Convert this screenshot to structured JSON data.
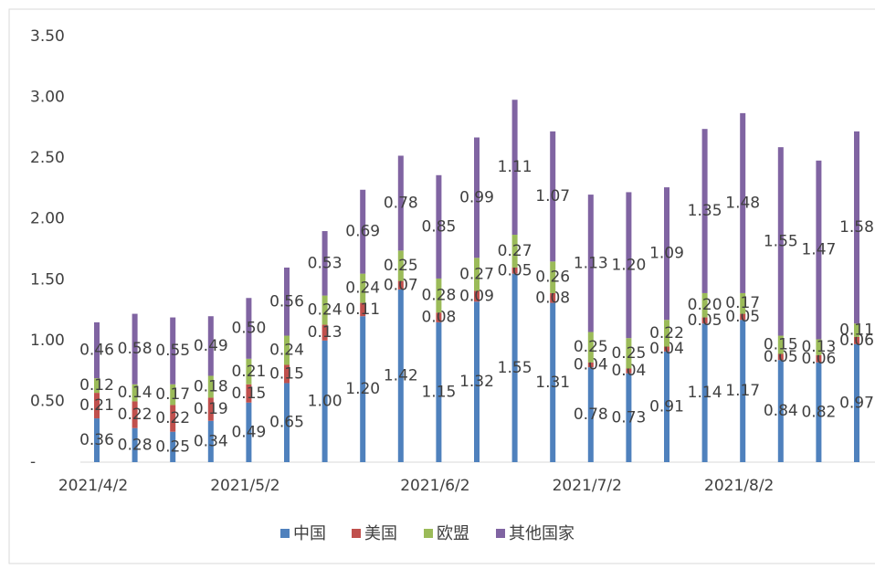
{
  "chart_data": {
    "type": "stacked_bar",
    "categories": [
      "2021/4/2",
      null,
      null,
      null,
      "2021/5/2",
      null,
      null,
      null,
      null,
      "2021/6/2",
      null,
      null,
      null,
      "2021/7/2",
      null,
      null,
      null,
      "2021/8/2",
      null,
      null,
      null
    ],
    "series": [
      {
        "name": "中国",
        "color": "#4f81bd",
        "values": [
          0.36,
          0.28,
          0.25,
          0.34,
          0.49,
          0.65,
          1.0,
          1.2,
          1.42,
          1.15,
          1.32,
          1.55,
          1.31,
          0.78,
          0.73,
          0.91,
          1.14,
          1.17,
          0.84,
          0.82,
          0.97
        ],
        "value_labels": [
          "0.36",
          "0.28",
          "0.25",
          "0.34",
          "0.49",
          "0.65",
          "1.00",
          "1.20",
          "1.42",
          "1.15",
          "1.32",
          "1.55",
          "1.31",
          "0.78",
          "0.73",
          "0.91",
          "1.14",
          "1.17",
          "0.84",
          "0.82",
          "0.97"
        ]
      },
      {
        "name": "美国",
        "color": "#c0504d",
        "values": [
          0.21,
          0.22,
          0.22,
          0.19,
          0.15,
          0.15,
          0.13,
          0.11,
          0.07,
          0.08,
          0.09,
          0.05,
          0.08,
          0.04,
          0.04,
          0.04,
          0.05,
          0.05,
          0.05,
          0.06,
          0.06
        ],
        "value_labels": [
          "0.21",
          "0.22",
          "0.22",
          "0.19",
          "0.15",
          "0.15",
          "0.13",
          "0.11",
          "0.07",
          "0.08",
          "0.09",
          "0.05",
          "0.08",
          "0.04",
          "0.04",
          "0.04",
          "0.05",
          "0.05",
          "0.05",
          "0.06",
          "0.06"
        ]
      },
      {
        "name": "欧盟",
        "color": "#9bbb59",
        "values": [
          0.12,
          0.14,
          0.17,
          0.18,
          0.21,
          0.24,
          0.24,
          0.24,
          0.25,
          0.28,
          0.27,
          0.27,
          0.26,
          0.25,
          0.25,
          0.22,
          0.2,
          0.17,
          0.15,
          0.13,
          0.11
        ],
        "value_labels": [
          "0.12",
          "0.14",
          "0.17",
          "0.18",
          "0.21",
          "0.24",
          "0.24",
          "0.24",
          "0.25",
          "0.28",
          "0.27",
          "0.27",
          "0.26",
          "0.25",
          "0.25",
          "0.22",
          "0.20",
          "0.17",
          "0.15",
          "0.13",
          "0.11"
        ]
      },
      {
        "name": "其他国家",
        "color": "#8064a2",
        "values": [
          0.46,
          0.58,
          0.55,
          0.49,
          0.5,
          0.56,
          0.53,
          0.69,
          0.78,
          0.85,
          0.99,
          1.11,
          1.07,
          1.13,
          1.2,
          1.09,
          1.35,
          1.48,
          1.55,
          1.47,
          1.58
        ],
        "value_labels": [
          "0.46",
          "0.58",
          "0.55",
          "0.49",
          "0.50",
          "0.56",
          "0.53",
          "0.69",
          "0.78",
          "0.85",
          "0.99",
          "1.11",
          "1.07",
          "1.13",
          "1.20",
          "1.09",
          "1.35",
          "1.48",
          "1.55",
          "1.47",
          "1.58"
        ]
      }
    ],
    "ylim": [
      0,
      3.5
    ],
    "yticks": [
      {
        "value": 0,
        "label": "-"
      },
      {
        "value": 0.5,
        "label": "0.50"
      },
      {
        "value": 1,
        "label": "1.00"
      },
      {
        "value": 1.5,
        "label": "1.50"
      },
      {
        "value": 2,
        "label": "2.00"
      },
      {
        "value": 2.5,
        "label": "2.50"
      },
      {
        "value": 3,
        "label": "3.00"
      },
      {
        "value": 3.5,
        "label": "3.50"
      }
    ],
    "grid": false,
    "legend": "bottom"
  }
}
